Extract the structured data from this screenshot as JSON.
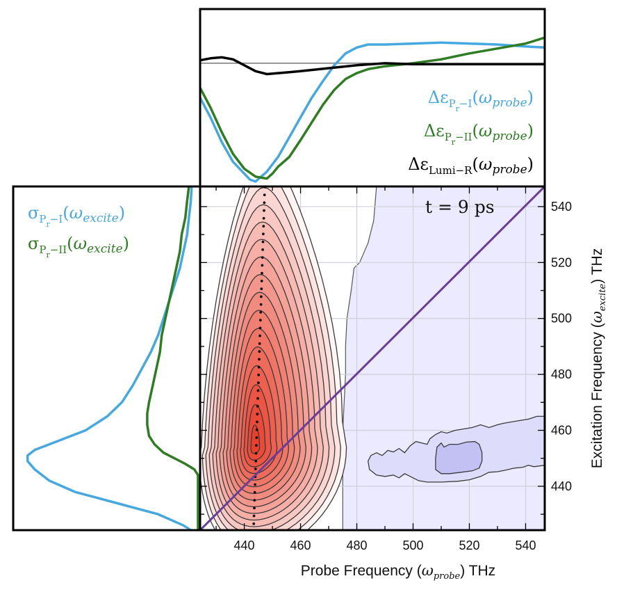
{
  "chart_data": {
    "type": "heatmap",
    "title": "",
    "annotation": "t = 9 ps",
    "xlabel": "Probe Frequency (ω_probe) THz",
    "xlabel_parts": {
      "main": "Probe Frequency (",
      "symbol": "ω",
      "sub": "probe",
      "tail": ") THz"
    },
    "ylabel": "Excitation Frequency (ω_excite) THz",
    "ylabel_parts": {
      "main": "Excitation Frequency (",
      "symbol": "ω",
      "sub": "excite",
      "tail": ") THz"
    },
    "xlim": [
      424.3,
      546.8
    ],
    "ylim": [
      424.3,
      547.2
    ],
    "xticks": [
      440,
      460,
      480,
      500,
      520,
      540
    ],
    "yticks": [
      440,
      460,
      480,
      500,
      520,
      540
    ],
    "xtick_labels": [
      "440",
      "460",
      "480",
      "500",
      "520",
      "540"
    ],
    "ytick_labels": [
      "440",
      "460",
      "480",
      "500",
      "520",
      "540"
    ],
    "grid": true,
    "diagonal": {
      "from": [
        424.3,
        424.3
      ],
      "to": [
        546.8,
        547.2
      ],
      "color": "#6a3d9a"
    },
    "positive_peak": {
      "center": [
        443.5,
        454
      ],
      "n_contours": 16,
      "color": "#e8402d"
    },
    "negative_feature": {
      "center": [
        515,
        452
      ],
      "region_start_x": 475,
      "color": "#8080e0"
    },
    "peak_trace_dots_x": [
      447,
      443.5
    ],
    "top_panel": {
      "ylabel": "Δε",
      "legend": [
        {
          "name": "Δε_Pr-I(ω_probe)",
          "base": "Δε",
          "sub": "P",
          "subsub": "r",
          "suffix": "−I",
          "arg_sub": "probe",
          "color": "#45a8e0"
        },
        {
          "name": "Δε_Pr-II(ω_probe)",
          "base": "Δε",
          "sub": "P",
          "subsub": "r",
          "suffix": "−II",
          "arg_sub": "probe",
          "color": "#2e7d22"
        },
        {
          "name": "Δε_Lumi-R(ω_probe)",
          "base": "Δε",
          "sub": "Lumi−R",
          "subsub": "",
          "suffix": "",
          "arg_sub": "probe",
          "color": "#000000"
        }
      ],
      "series": [
        {
          "name": "Pr-I",
          "x": [
            424.3,
            428,
            432,
            436,
            440,
            442,
            444,
            446,
            448,
            452,
            456,
            460,
            464,
            468,
            472,
            476,
            480,
            484,
            490,
            500,
            510,
            520,
            530,
            540,
            546.8
          ],
          "y": [
            -0.35,
            -0.55,
            -0.8,
            -1.0,
            -1.12,
            -1.18,
            -1.2,
            -1.15,
            -1.1,
            -0.95,
            -0.75,
            -0.55,
            -0.35,
            -0.18,
            -0.02,
            0.1,
            0.16,
            0.19,
            0.19,
            0.2,
            0.21,
            0.2,
            0.19,
            0.17,
            0.16
          ]
        },
        {
          "name": "Pr-II",
          "x": [
            424.3,
            428,
            432,
            436,
            440,
            444,
            446,
            448,
            450,
            452,
            456,
            460,
            464,
            468,
            472,
            476,
            480,
            484,
            490,
            500,
            510,
            520,
            530,
            540,
            546.8
          ],
          "y": [
            -0.25,
            -0.45,
            -0.7,
            -0.92,
            -1.07,
            -1.15,
            -1.16,
            -1.17,
            -1.12,
            -1.05,
            -0.95,
            -0.78,
            -0.6,
            -0.42,
            -0.27,
            -0.16,
            -0.1,
            -0.06,
            -0.03,
            0.0,
            0.04,
            0.1,
            0.15,
            0.2,
            0.26
          ]
        },
        {
          "name": "Lumi-R",
          "x": [
            424.3,
            428,
            432,
            436,
            440,
            444,
            448,
            452,
            456,
            460,
            470,
            480,
            490,
            500,
            510,
            520,
            530,
            540,
            546.8
          ],
          "y": [
            0.03,
            0.05,
            0.06,
            0.04,
            -0.02,
            -0.08,
            -0.11,
            -0.1,
            -0.09,
            -0.08,
            -0.05,
            -0.02,
            0.0,
            -0.01,
            -0.01,
            -0.01,
            -0.01,
            -0.01,
            -0.01
          ]
        }
      ],
      "ylim": [
        -1.25,
        0.55
      ]
    },
    "left_panel": {
      "legend": [
        {
          "name": "σ_Pr-I(ω_excite)",
          "base": "σ",
          "sub": "P",
          "subsub": "r",
          "suffix": "−I",
          "arg_sub": "excite",
          "color": "#45a8e0"
        },
        {
          "name": "σ_Pr-II(ω_excite)",
          "base": "σ",
          "sub": "P",
          "subsub": "r",
          "suffix": "−II",
          "arg_sub": "excite",
          "color": "#2e7d22"
        }
      ],
      "series": [
        {
          "name": "Pr-I",
          "y": [
            424.3,
            426,
            430,
            434,
            438,
            442,
            446,
            449,
            451,
            453,
            456,
            460,
            465,
            470,
            476,
            482,
            488,
            494,
            500,
            506,
            512,
            518,
            524,
            530,
            536,
            542,
            547.2
          ],
          "x": [
            0.04,
            0.08,
            0.22,
            0.45,
            0.68,
            0.82,
            0.9,
            0.94,
            0.94,
            0.9,
            0.78,
            0.62,
            0.5,
            0.42,
            0.36,
            0.31,
            0.26,
            0.22,
            0.19,
            0.16,
            0.13,
            0.1,
            0.08,
            0.06,
            0.05,
            0.04,
            0.035
          ]
        },
        {
          "name": "Pr-II",
          "y": [
            424.3,
            440,
            444,
            446,
            448,
            450,
            452,
            455,
            458,
            462,
            466,
            470,
            476,
            482,
            488,
            494,
            500,
            506,
            512,
            518,
            524,
            530,
            536,
            542,
            547.2
          ],
          "x": [
            0.0,
            0.0,
            0.0,
            0.02,
            0.07,
            0.13,
            0.19,
            0.24,
            0.27,
            0.28,
            0.28,
            0.27,
            0.25,
            0.23,
            0.21,
            0.2,
            0.18,
            0.16,
            0.14,
            0.12,
            0.1,
            0.09,
            0.07,
            0.06,
            0.05
          ]
        }
      ],
      "xlim": [
        0,
        1.0
      ]
    }
  }
}
